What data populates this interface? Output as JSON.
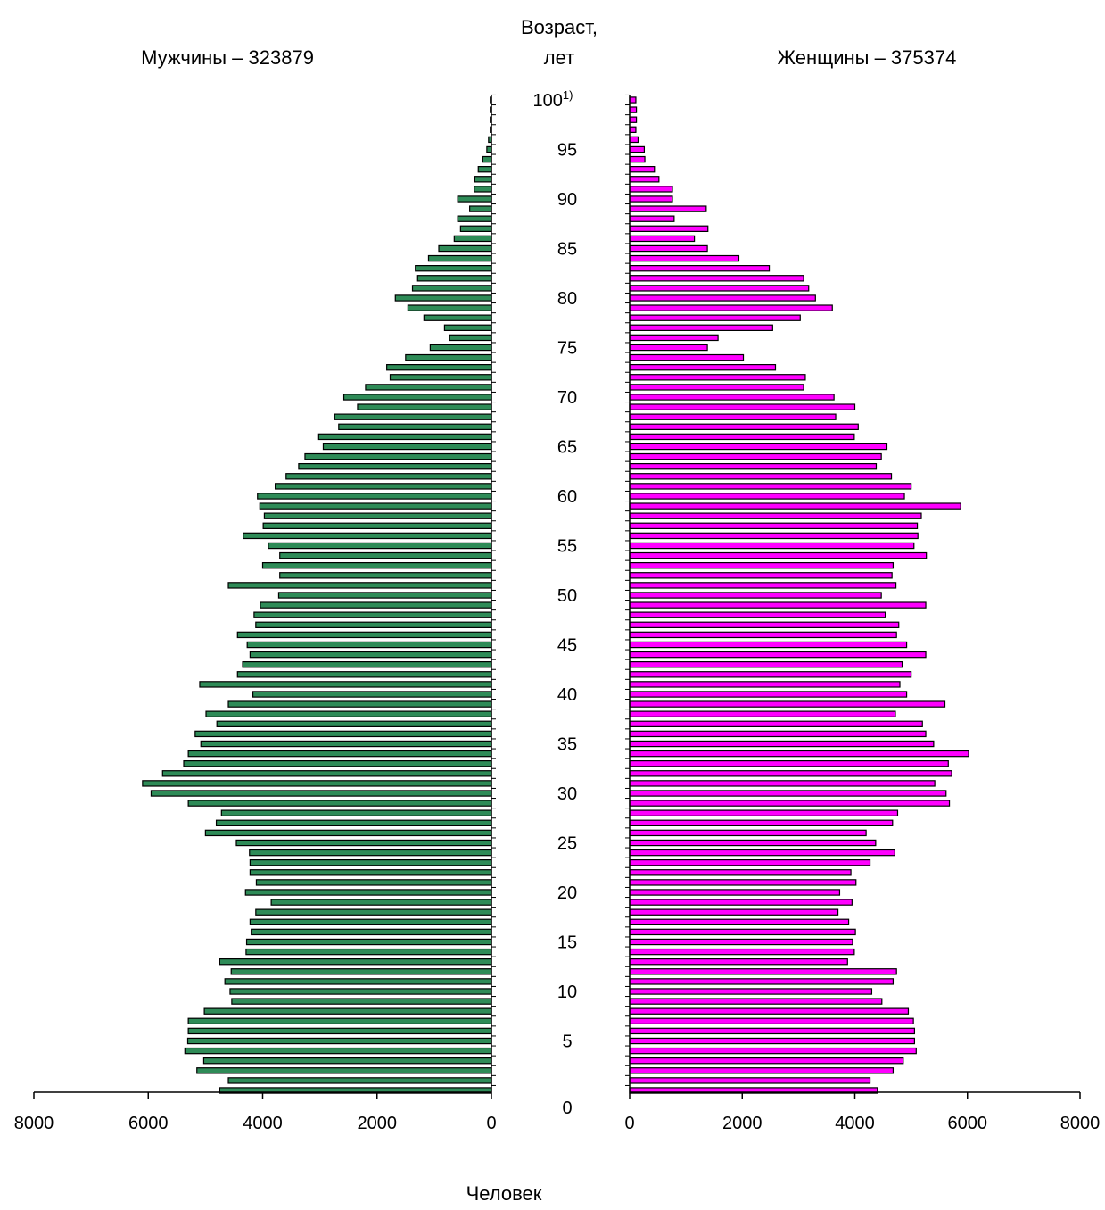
{
  "chart_data": {
    "type": "bar",
    "orientation": "horizontal",
    "center_label_lines": [
      "Возраст,",
      "лет"
    ],
    "xlabel": "Человек",
    "ages": [
      0,
      1,
      2,
      3,
      4,
      5,
      6,
      7,
      8,
      9,
      10,
      11,
      12,
      13,
      14,
      15,
      16,
      17,
      18,
      19,
      20,
      21,
      22,
      23,
      24,
      25,
      26,
      27,
      28,
      29,
      30,
      31,
      32,
      33,
      34,
      35,
      36,
      37,
      38,
      39,
      40,
      41,
      42,
      43,
      44,
      45,
      46,
      47,
      48,
      49,
      50,
      51,
      52,
      53,
      54,
      55,
      56,
      57,
      58,
      59,
      60,
      61,
      62,
      63,
      64,
      65,
      66,
      67,
      68,
      69,
      70,
      71,
      72,
      73,
      74,
      75,
      76,
      77,
      78,
      79,
      80,
      81,
      82,
      83,
      84,
      85,
      86,
      87,
      88,
      89,
      90,
      91,
      92,
      93,
      94,
      95,
      96,
      97,
      98,
      99,
      100
    ],
    "age_tick_labels": [
      "0",
      "5",
      "10",
      "15",
      "20",
      "25",
      "30",
      "35",
      "40",
      "45",
      "50",
      "55",
      "60",
      "65",
      "70",
      "75",
      "80",
      "85",
      "90",
      "95",
      "100"
    ],
    "age_tick_values": [
      0,
      5,
      10,
      15,
      20,
      25,
      30,
      35,
      40,
      45,
      50,
      55,
      60,
      65,
      70,
      75,
      80,
      85,
      90,
      95,
      100
    ],
    "age_top_superscript": "1)",
    "xlim": [
      0,
      8000
    ],
    "x_tick_values": [
      0,
      2000,
      4000,
      6000,
      8000
    ],
    "x_tick_labels": [
      "0",
      "2000",
      "4000",
      "6000",
      "8000"
    ],
    "series": [
      {
        "name": "Мужчины – 323879",
        "side": "left",
        "color": "#2e8b57",
        "values": [
          4750,
          4600,
          5150,
          5030,
          5360,
          5310,
          5300,
          5300,
          5020,
          4540,
          4570,
          4660,
          4550,
          4750,
          4290,
          4280,
          4200,
          4220,
          4120,
          3850,
          4300,
          4110,
          4220,
          4220,
          4230,
          4460,
          5000,
          4810,
          4720,
          5300,
          5950,
          6100,
          5750,
          5380,
          5300,
          5080,
          5180,
          4800,
          4990,
          4600,
          4170,
          5100,
          4440,
          4350,
          4220,
          4270,
          4440,
          4120,
          4150,
          4040,
          3720,
          4600,
          3700,
          4000,
          3700,
          3900,
          4340,
          3990,
          3970,
          4050,
          4090,
          3780,
          3590,
          3370,
          3260,
          2940,
          3020,
          2670,
          2740,
          2340,
          2580,
          2200,
          1770,
          1830,
          1500,
          1070,
          730,
          820,
          1180,
          1460,
          1680,
          1380,
          1290,
          1330,
          1100,
          920,
          650,
          540,
          590,
          380,
          590,
          300,
          290,
          230,
          150,
          80,
          50,
          20,
          20,
          20,
          20
        ]
      },
      {
        "name": "Женщины – 375374",
        "side": "right",
        "color": "#ff00ff",
        "values": [
          4400,
          4270,
          4680,
          4860,
          5090,
          5060,
          5060,
          5040,
          4950,
          4480,
          4300,
          4680,
          4740,
          3870,
          3990,
          3960,
          4010,
          3890,
          3700,
          3950,
          3730,
          4020,
          3930,
          4270,
          4710,
          4370,
          4200,
          4670,
          4760,
          5680,
          5620,
          5420,
          5720,
          5660,
          6020,
          5400,
          5260,
          5200,
          4720,
          5600,
          4920,
          4800,
          5000,
          4840,
          5260,
          4920,
          4740,
          4780,
          4540,
          5260,
          4470,
          4730,
          4660,
          4680,
          5270,
          5050,
          5120,
          5110,
          5180,
          5880,
          4880,
          5000,
          4650,
          4380,
          4470,
          4570,
          3990,
          4060,
          3660,
          4000,
          3630,
          3090,
          3120,
          2590,
          2020,
          1380,
          1570,
          2540,
          3030,
          3600,
          3300,
          3180,
          3090,
          2480,
          1940,
          1380,
          1150,
          1390,
          790,
          1360,
          760,
          760,
          520,
          440,
          270,
          260,
          150,
          110,
          120,
          120,
          110
        ]
      }
    ]
  }
}
